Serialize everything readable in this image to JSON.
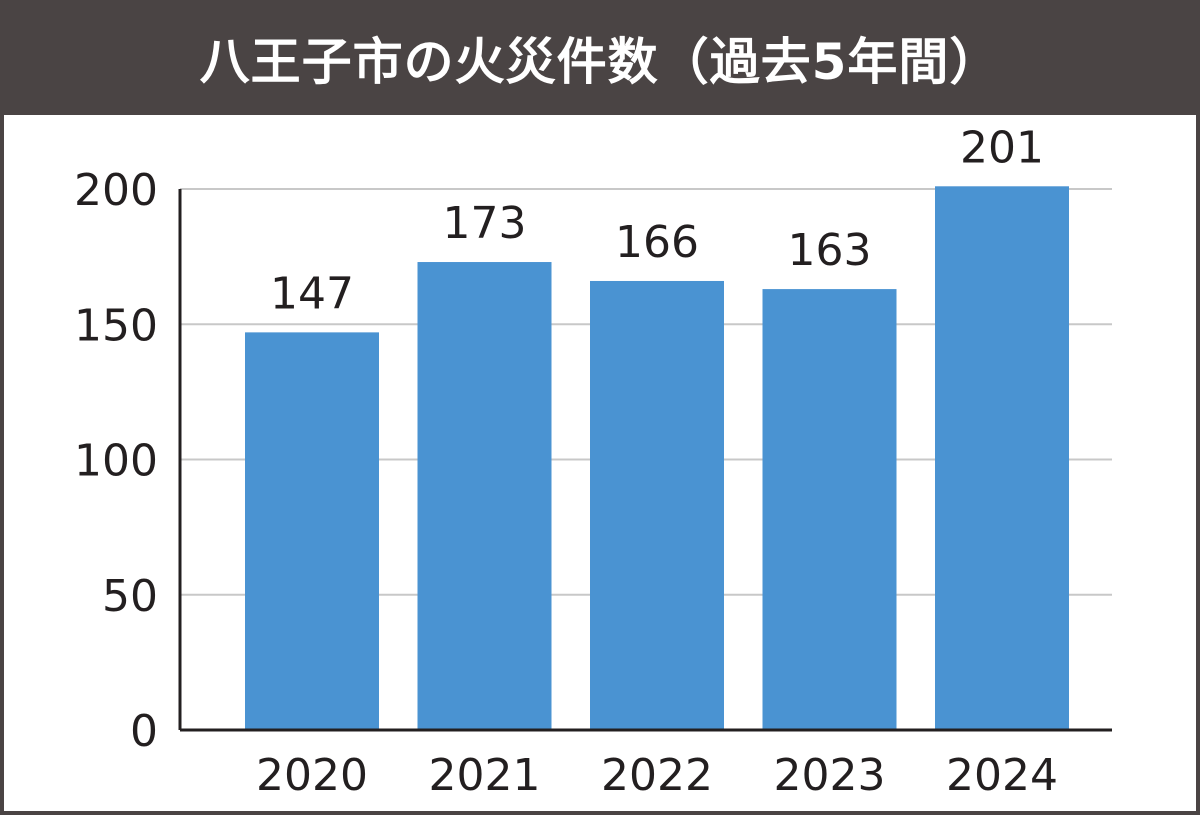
{
  "colors": {
    "title_background": "#4a4444",
    "title_text": "#ffffff",
    "bar": "#4a93d2",
    "gridline": "#c8c8c8",
    "axis": "#231f20",
    "text": "#231f20"
  },
  "chart_data": {
    "type": "bar",
    "title": "八王子市の火災件数（過去5年間）",
    "xlabel": "",
    "ylabel": "",
    "categories": [
      "2020",
      "2021",
      "2022",
      "2023",
      "2024"
    ],
    "values": [
      147,
      173,
      166,
      163,
      201
    ],
    "data_labels": [
      "147",
      "173",
      "166",
      "163",
      "201"
    ],
    "ylim": [
      0,
      200
    ],
    "yticks": [
      0,
      50,
      100,
      150,
      200
    ],
    "ytick_labels": [
      "0",
      "50",
      "100",
      "150",
      "200"
    ],
    "grid": true,
    "legend": "none"
  }
}
